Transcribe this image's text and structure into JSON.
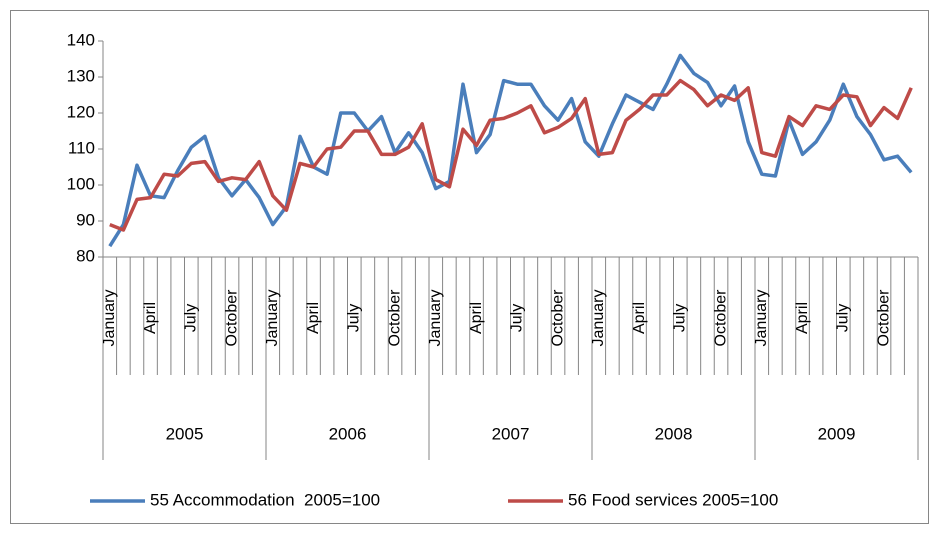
{
  "chart_data": {
    "type": "line",
    "categories": [
      "January",
      null,
      null,
      "April",
      null,
      null,
      "July",
      null,
      null,
      "October",
      null,
      null,
      "January",
      null,
      null,
      "April",
      null,
      null,
      "July",
      null,
      null,
      "October",
      null,
      null,
      "January",
      null,
      null,
      "April",
      null,
      null,
      "July",
      null,
      null,
      "October",
      null,
      null,
      "January",
      null,
      null,
      "April",
      null,
      null,
      "July",
      null,
      null,
      "October",
      null,
      null,
      "January",
      null,
      null,
      "April",
      null,
      null,
      "July",
      null,
      null,
      "October",
      null,
      null
    ],
    "category_groups": [
      "2005",
      "2006",
      "2007",
      "2008",
      "2009"
    ],
    "series": [
      {
        "name": "55 Accommodation  2005=100",
        "color": "#4a7ebb",
        "values": [
          83,
          89,
          105.5,
          97,
          96.5,
          104,
          110.5,
          113.5,
          102,
          97,
          101.5,
          96.5,
          89,
          94,
          113.5,
          105,
          103,
          120,
          120,
          115,
          119,
          109,
          114.5,
          109,
          99,
          101,
          128,
          109,
          114,
          129,
          128,
          128,
          122,
          118,
          124,
          112,
          108,
          117,
          125,
          123,
          121,
          128,
          136,
          131,
          128.5,
          122,
          127.5,
          112,
          103,
          102.5,
          118,
          108.5,
          112,
          118,
          128,
          119,
          114,
          107,
          108,
          103.5
        ]
      },
      {
        "name": "56 Food services 2005=100",
        "color": "#be4b48",
        "values": [
          89,
          87.5,
          96,
          96.5,
          103,
          102.5,
          106,
          106.5,
          101,
          102,
          101.5,
          106.5,
          97,
          93,
          106,
          105,
          110,
          110.5,
          115,
          115,
          108.5,
          108.5,
          110.5,
          117,
          101.5,
          99.5,
          115.5,
          111,
          118,
          118.5,
          120,
          122,
          114.5,
          116,
          118.5,
          124,
          108.5,
          109,
          118,
          121,
          125,
          125,
          129,
          126.5,
          122,
          125,
          123.5,
          127,
          109,
          108,
          119,
          116.5,
          122,
          121,
          125,
          124.5,
          116.5,
          121.5,
          118.5,
          127
        ]
      }
    ],
    "ylim": [
      80,
      140
    ],
    "yticks": [
      80,
      90,
      100,
      110,
      120,
      130,
      140
    ],
    "grid": false,
    "legend": "bottom"
  }
}
